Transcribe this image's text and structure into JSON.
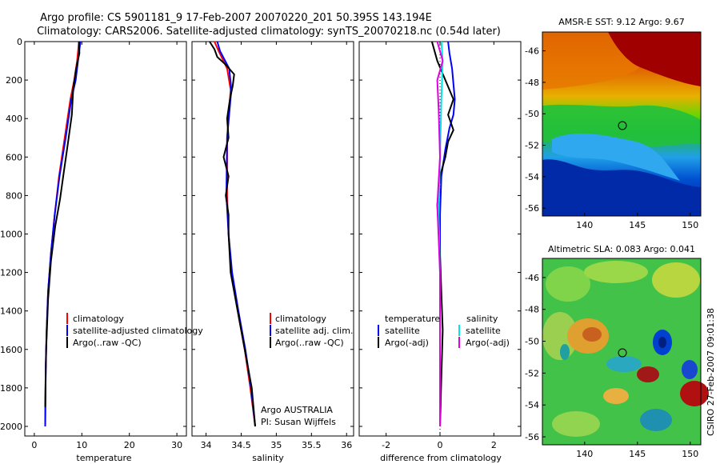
{
  "header": {
    "line1": "Argo profile: CS 5901181_9 17-Feb-2007 20070220_201 50.395S 143.194E",
    "line2": "Climatology: CARS2006. Satellite-adjusted climatology: synTS_20070218.nc (0.54d later)"
  },
  "side_label": "CSIRO 27-Feb-2007 09:01:38",
  "colors": {
    "climatology": "#ff0000",
    "satellite": "#0000ff",
    "argo": "#000000",
    "sat_sal": "#00e5e5",
    "argo_sal": "#e000e0"
  },
  "chart_data": [
    {
      "type": "line",
      "xlabel": "temperature",
      "xlim": [
        -2,
        32
      ],
      "ylim": [
        2050,
        0
      ],
      "xticks": [
        "0",
        "10",
        "20",
        "30"
      ],
      "xtick_vals": [
        0,
        10,
        20,
        30
      ],
      "yticks": [
        "0",
        "200",
        "400",
        "600",
        "800",
        "1000",
        "1200",
        "1400",
        "1600",
        "1800",
        "2000"
      ],
      "ytick_vals": [
        0,
        200,
        400,
        600,
        800,
        1000,
        1200,
        1400,
        1600,
        1800,
        2000
      ],
      "legend": [
        "climatology",
        "satellite-adjusted climatology",
        "Argo(..raw -QC)"
      ],
      "series": [
        {
          "name": "climatology",
          "color": "#ff0000",
          "x": [
            9.4,
            9.0,
            8.4,
            7.6,
            6.4,
            5.2,
            4.3,
            3.5,
            2.9,
            2.6,
            2.4,
            2.3
          ],
          "y": [
            0,
            100,
            200,
            300,
            500,
            700,
            900,
            1100,
            1300,
            1500,
            1700,
            2000
          ]
        },
        {
          "name": "satellite-adjusted climatology",
          "color": "#0000ff",
          "x": [
            9.7,
            9.2,
            8.7,
            7.8,
            6.6,
            5.3,
            4.3,
            3.5,
            2.9,
            2.6,
            2.4,
            2.3
          ],
          "y": [
            0,
            100,
            200,
            300,
            500,
            700,
            900,
            1100,
            1300,
            1500,
            1700,
            2000
          ]
        },
        {
          "name": "Argo(..raw -QC)",
          "color": "#000000",
          "x": [
            9.4,
            9.5,
            8.8,
            8.2,
            7.9,
            7.0,
            6.2,
            5.4,
            4.4,
            3.5,
            2.9,
            2.5,
            2.3
          ],
          "y": [
            0,
            60,
            140,
            240,
            380,
            540,
            680,
            820,
            960,
            1140,
            1340,
            1600,
            1900
          ]
        }
      ]
    },
    {
      "type": "line",
      "xlabel": "salinity",
      "xlim": [
        33.8,
        36.1
      ],
      "ylim": [
        2050,
        0
      ],
      "xticks": [
        "34",
        "34.5",
        "35",
        "35.5",
        "36"
      ],
      "xtick_vals": [
        34,
        34.5,
        35,
        35.5,
        36
      ],
      "legend": [
        "climatology",
        "satellite adj. clim.",
        "Argo(..raw -QC)"
      ],
      "annotations": [
        "Argo AUSTRALIA",
        "PI: Susan Wijffels"
      ],
      "series": [
        {
          "name": "climatology",
          "color": "#ff0000",
          "x": [
            34.12,
            34.18,
            34.3,
            34.35,
            34.3,
            34.3,
            34.32,
            34.36,
            34.45,
            34.55,
            34.63,
            34.7
          ],
          "y": [
            0,
            50,
            140,
            250,
            500,
            800,
            1000,
            1200,
            1400,
            1600,
            1800,
            2000
          ]
        },
        {
          "name": "satellite adj. clim.",
          "color": "#0000ff",
          "x": [
            34.16,
            34.2,
            34.33,
            34.36,
            34.3,
            34.29,
            34.32,
            34.37,
            34.46,
            34.56,
            34.64,
            34.7
          ],
          "y": [
            0,
            50,
            140,
            250,
            500,
            800,
            1000,
            1200,
            1400,
            1600,
            1800,
            2000
          ]
        },
        {
          "name": "Argo(..raw -QC)",
          "color": "#000000",
          "x": [
            34.05,
            34.12,
            34.16,
            34.28,
            34.4,
            34.38,
            34.34,
            34.3,
            34.32,
            34.25,
            34.32,
            34.28,
            34.32,
            34.32,
            34.35,
            34.45,
            34.55,
            34.65,
            34.7
          ],
          "y": [
            0,
            40,
            80,
            120,
            170,
            230,
            300,
            400,
            500,
            600,
            700,
            800,
            900,
            1000,
            1200,
            1400,
            1600,
            1800,
            2000
          ]
        }
      ]
    },
    {
      "type": "line",
      "xlabel": "difference from climatology",
      "xlim": [
        -3,
        3
      ],
      "ylim": [
        2050,
        0
      ],
      "xticks": [
        "-2",
        "0",
        "2"
      ],
      "xtick_vals": [
        -2,
        0,
        2
      ],
      "legend_titles": [
        "temperature",
        "salinity"
      ],
      "legend": [
        "satellite",
        "Argo(-adj)",
        "satellite",
        "Argo(-adj)"
      ],
      "series": [
        {
          "name": "temperature satellite",
          "color": "#0000ff",
          "x": [
            0.3,
            0.35,
            0.45,
            0.5,
            0.55,
            0.5,
            0.35,
            0.2,
            0.05,
            0.0,
            0.0,
            0.0,
            0.0
          ],
          "y": [
            0,
            60,
            140,
            220,
            300,
            380,
            450,
            560,
            700,
            900,
            1200,
            1600,
            2000
          ]
        },
        {
          "name": "temperature Argo(-adj)",
          "color": "#000000",
          "x": [
            -0.3,
            -0.1,
            0.2,
            0.5,
            0.3,
            0.5,
            0.3,
            0.2,
            0.0,
            -0.1,
            0.0,
            0.1,
            0.0
          ],
          "y": [
            0,
            100,
            200,
            300,
            380,
            460,
            520,
            600,
            700,
            850,
            1100,
            1500,
            2000
          ]
        },
        {
          "name": "salinity satellite",
          "color": "#00e5e5",
          "x": [
            0.05,
            0.1,
            0.05,
            0.0,
            -0.05,
            0.0,
            0.0,
            0.0
          ],
          "y": [
            0,
            100,
            300,
            600,
            900,
            1200,
            1600,
            2000
          ]
        },
        {
          "name": "salinity Argo(-adj)",
          "color": "#e000e0",
          "x": [
            -0.1,
            0.1,
            -0.1,
            -0.05,
            0.0,
            -0.1,
            0.0,
            0.0
          ],
          "y": [
            0,
            100,
            200,
            350,
            600,
            850,
            1200,
            2000
          ]
        }
      ]
    }
  ],
  "maps": [
    {
      "title": "AMSR-E SST: 9.12 Argo: 9.67",
      "xticks": [
        "140",
        "145",
        "150"
      ],
      "yticks": [
        "-46",
        "-48",
        "-50",
        "-52",
        "-54",
        "-56"
      ]
    },
    {
      "title": "Altimetric SLA: 0.083 Argo: 0.041",
      "xticks": [
        "140",
        "145",
        "150"
      ],
      "yticks": [
        "-46",
        "-48",
        "-50",
        "-52",
        "-54",
        "-56"
      ]
    }
  ]
}
